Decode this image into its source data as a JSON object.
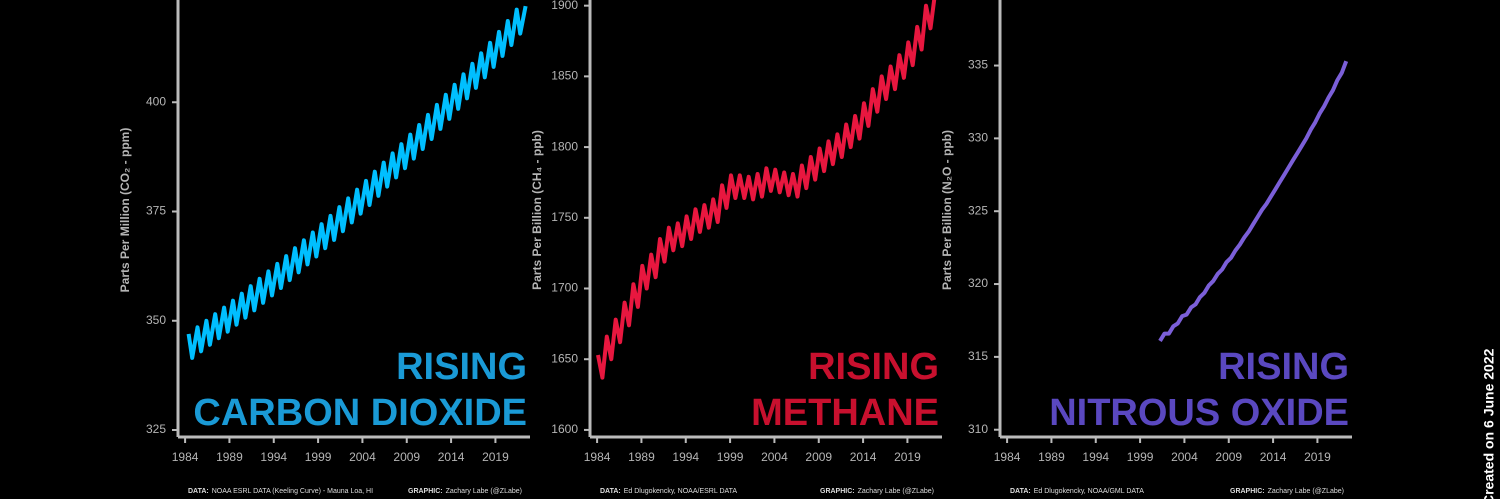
{
  "chart_data": [
    {
      "type": "line",
      "title_lines": [
        "RISING",
        "CARBON DIOXIDE"
      ],
      "title_color": "#1a9ad6",
      "ylabel": "Parts Per Million (CO₂ - ppm)",
      "source_label": "DATA:",
      "source": "NOAA ESRL DATA (Keeling Curve) - Mauna Loa, HI",
      "credit_label": "GRAPHIC:",
      "credit": "Zachary Labe (@ZLabe)",
      "color": "#00bfff",
      "xlim": [
        1983.2,
        2022.9
      ],
      "ylim": [
        323.4,
        423.4
      ],
      "xticks": [
        1984,
        1989,
        1994,
        1999,
        2004,
        2009,
        2014,
        2019
      ],
      "yticks": [
        325,
        350,
        375,
        400
      ],
      "x": [
        1984.4,
        1984.8,
        1985.4,
        1985.8,
        1986.4,
        1986.8,
        1987.4,
        1987.8,
        1988.4,
        1988.8,
        1989.4,
        1989.8,
        1990.4,
        1990.8,
        1991.4,
        1991.8,
        1992.4,
        1992.8,
        1993.4,
        1993.8,
        1994.4,
        1994.8,
        1995.4,
        1995.8,
        1996.4,
        1996.8,
        1997.4,
        1997.8,
        1998.4,
        1998.8,
        1999.4,
        1999.8,
        2000.4,
        2000.8,
        2001.4,
        2001.8,
        2002.4,
        2002.8,
        2003.4,
        2003.8,
        2004.4,
        2004.8,
        2005.4,
        2005.8,
        2006.4,
        2006.8,
        2007.4,
        2007.8,
        2008.4,
        2008.8,
        2009.4,
        2009.8,
        2010.4,
        2010.8,
        2011.4,
        2011.8,
        2012.4,
        2012.8,
        2013.4,
        2013.8,
        2014.4,
        2014.8,
        2015.4,
        2015.8,
        2016.4,
        2016.8,
        2017.4,
        2017.8,
        2018.4,
        2018.8,
        2019.4,
        2019.8,
        2020.4,
        2020.8,
        2021.4,
        2021.8,
        2022.4
      ],
      "values": [
        347.0,
        341.5,
        348.5,
        343.0,
        350.0,
        344.5,
        351.5,
        346.0,
        353.0,
        347.5,
        354.6,
        349.1,
        356.2,
        350.7,
        357.9,
        352.4,
        359.6,
        354.1,
        361.3,
        355.8,
        363.0,
        357.5,
        364.8,
        359.3,
        366.6,
        361.1,
        368.4,
        362.9,
        370.2,
        364.7,
        372.1,
        366.6,
        374.0,
        368.5,
        376.0,
        370.5,
        378.0,
        372.5,
        380.0,
        374.5,
        382.0,
        376.5,
        384.1,
        378.6,
        386.2,
        380.7,
        388.3,
        382.8,
        390.4,
        384.9,
        392.6,
        387.1,
        394.8,
        389.3,
        397.1,
        391.6,
        399.4,
        393.9,
        401.7,
        396.2,
        404.0,
        398.5,
        406.4,
        400.9,
        408.8,
        403.3,
        411.2,
        405.7,
        413.6,
        408.1,
        416.1,
        410.6,
        418.6,
        413.1,
        421.2,
        415.7,
        422.0
      ]
    },
    {
      "type": "line",
      "title_lines": [
        "RISING",
        "METHANE"
      ],
      "title_color": "#c8102e",
      "ylabel": "Parts Per Billion (CH₄ - ppb)",
      "source_label": "DATA:",
      "source": "Ed Dlugokencky, NOAA/ESRL DATA",
      "credit_label": "GRAPHIC:",
      "credit": "Zachary Labe (@ZLabe)",
      "color": "#e8173f",
      "xlim": [
        1983.2,
        2022.9
      ],
      "ylim": [
        1595,
        1904
      ],
      "xticks": [
        1984,
        1989,
        1994,
        1999,
        2004,
        2009,
        2014,
        2019
      ],
      "yticks": [
        1600,
        1650,
        1700,
        1750,
        1800,
        1850,
        1900
      ],
      "x": [
        1984.1,
        1984.6,
        1985.1,
        1985.6,
        1986.1,
        1986.6,
        1987.1,
        1987.6,
        1988.1,
        1988.6,
        1989.1,
        1989.6,
        1990.1,
        1990.6,
        1991.1,
        1991.6,
        1992.1,
        1992.6,
        1993.1,
        1993.6,
        1994.1,
        1994.6,
        1995.1,
        1995.6,
        1996.1,
        1996.6,
        1997.1,
        1997.6,
        1998.1,
        1998.6,
        1999.1,
        1999.6,
        2000.1,
        2000.6,
        2001.1,
        2001.6,
        2002.1,
        2002.6,
        2003.1,
        2003.6,
        2004.1,
        2004.6,
        2005.1,
        2005.6,
        2006.1,
        2006.6,
        2007.1,
        2007.6,
        2008.1,
        2008.6,
        2009.1,
        2009.6,
        2010.1,
        2010.6,
        2011.1,
        2011.6,
        2012.1,
        2012.6,
        2013.1,
        2013.6,
        2014.1,
        2014.6,
        2015.1,
        2015.6,
        2016.1,
        2016.6,
        2017.1,
        2017.6,
        2018.1,
        2018.6,
        2019.1,
        2019.6,
        2020.1,
        2020.6,
        2021.1,
        2021.6,
        2022.1
      ],
      "values": [
        1653,
        1637,
        1666,
        1650,
        1678,
        1662,
        1690,
        1674,
        1703,
        1687,
        1716,
        1700,
        1724,
        1708,
        1735,
        1719,
        1743,
        1727,
        1746,
        1730,
        1751,
        1735,
        1756,
        1740,
        1759,
        1743,
        1763,
        1747,
        1773,
        1757,
        1780,
        1764,
        1780,
        1764,
        1779,
        1763,
        1781,
        1765,
        1785,
        1769,
        1784,
        1768,
        1782,
        1766,
        1781,
        1765,
        1787,
        1771,
        1793,
        1777,
        1799,
        1783,
        1804,
        1788,
        1809,
        1793,
        1816,
        1800,
        1822,
        1806,
        1831,
        1815,
        1841,
        1825,
        1850,
        1834,
        1857,
        1841,
        1865,
        1849,
        1874,
        1858,
        1885,
        1869,
        1900,
        1884,
        1908
      ]
    },
    {
      "type": "line",
      "title_lines": [
        "RISING",
        "NITROUS OXIDE"
      ],
      "title_color": "#5a48c0",
      "ylabel": "Parts Per Billion (N₂O - ppb)",
      "source_label": "DATA:",
      "source": "Ed Dlugokencky, NOAA/GML DATA",
      "credit_label": "GRAPHIC:",
      "credit": "Zachary Labe (@ZLabe)",
      "color": "#7b5fd8",
      "xlim": [
        1983.2,
        2022.9
      ],
      "ylim": [
        309.5,
        339.5
      ],
      "xticks": [
        1984,
        1989,
        1994,
        1999,
        2004,
        2009,
        2014,
        2019
      ],
      "yticks": [
        310,
        315,
        320,
        325,
        330,
        335
      ],
      "x": [
        2001.25,
        2001.75,
        2002.25,
        2002.75,
        2003.25,
        2003.75,
        2004.25,
        2004.75,
        2005.25,
        2005.75,
        2006.25,
        2006.75,
        2007.25,
        2007.75,
        2008.25,
        2008.75,
        2009.25,
        2009.75,
        2010.25,
        2010.75,
        2011.25,
        2011.75,
        2012.25,
        2012.75,
        2013.25,
        2013.75,
        2014.25,
        2014.75,
        2015.25,
        2015.75,
        2016.25,
        2016.75,
        2017.25,
        2017.75,
        2018.25,
        2018.75,
        2019.25,
        2019.75,
        2020.25,
        2020.75,
        2021.25,
        2021.75,
        2022.25
      ],
      "values": [
        316.1,
        316.6,
        316.6,
        317.1,
        317.3,
        317.8,
        317.9,
        318.4,
        318.6,
        319.1,
        319.4,
        319.9,
        320.2,
        320.7,
        321.0,
        321.5,
        321.8,
        322.3,
        322.7,
        323.2,
        323.6,
        324.1,
        324.6,
        325.1,
        325.5,
        326.0,
        326.5,
        327.0,
        327.5,
        328.0,
        328.5,
        329.0,
        329.5,
        330.0,
        330.6,
        331.1,
        331.7,
        332.2,
        332.8,
        333.3,
        334.0,
        334.5,
        335.3
      ]
    }
  ],
  "footer_note": "Created on 6 June 2022"
}
